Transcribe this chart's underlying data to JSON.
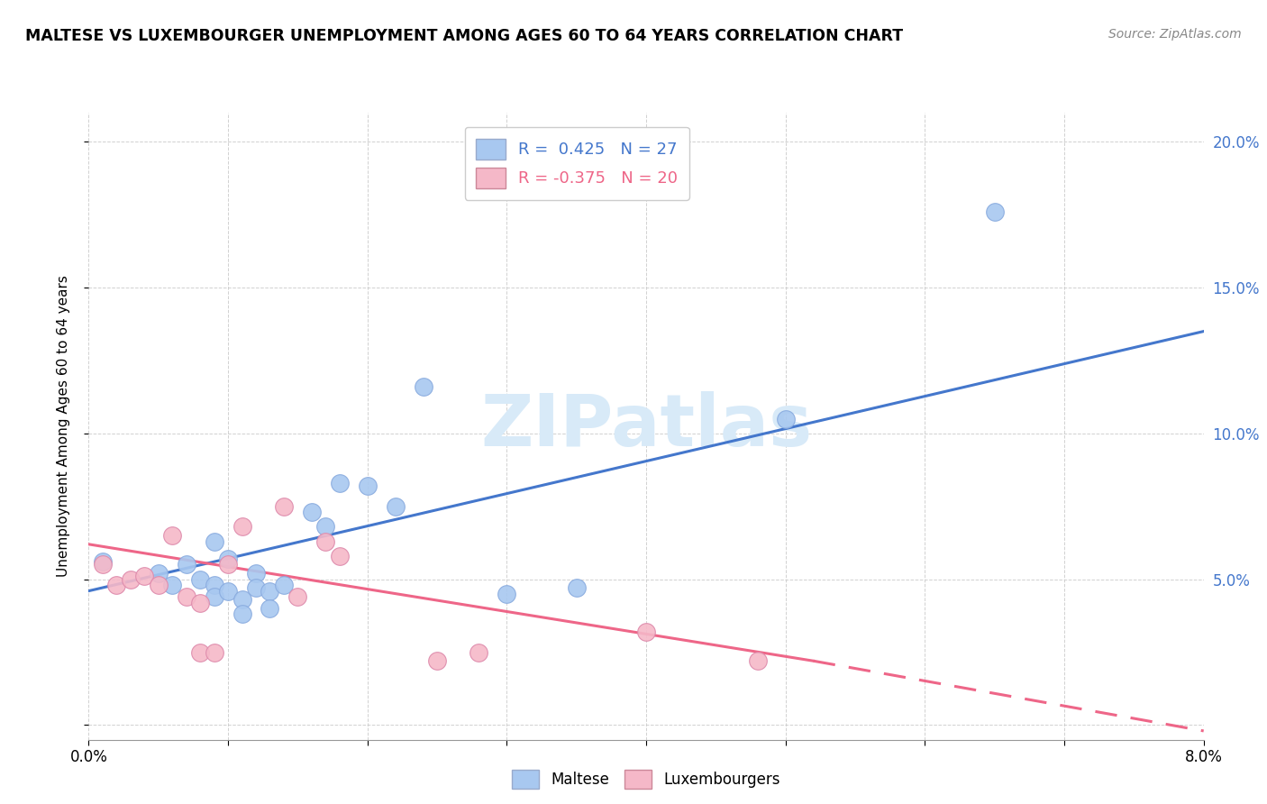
{
  "title": "MALTESE VS LUXEMBOURGER UNEMPLOYMENT AMONG AGES 60 TO 64 YEARS CORRELATION CHART",
  "source": "Source: ZipAtlas.com",
  "ylabel": "Unemployment Among Ages 60 to 64 years",
  "xlim": [
    0.0,
    0.08
  ],
  "ylim": [
    -0.005,
    0.21
  ],
  "x_ticks": [
    0.0,
    0.01,
    0.02,
    0.03,
    0.04,
    0.05,
    0.06,
    0.07,
    0.08
  ],
  "x_tick_labels": [
    "0.0%",
    "",
    "",
    "",
    "",
    "",
    "",
    "",
    "8.0%"
  ],
  "y_ticks": [
    0.0,
    0.05,
    0.1,
    0.15,
    0.2
  ],
  "y_tick_labels": [
    "",
    "5.0%",
    "10.0%",
    "15.0%",
    "20.0%"
  ],
  "legend_r_maltese": "R =  0.425",
  "legend_n_maltese": "N = 27",
  "legend_r_lux": "R = -0.375",
  "legend_n_lux": "N = 20",
  "maltese_color": "#A8C8F0",
  "lux_color": "#F5B8C8",
  "trend_maltese_color": "#4477CC",
  "trend_lux_color": "#EE6688",
  "watermark_color": "#D8EAF8",
  "maltese_x": [
    0.001,
    0.005,
    0.006,
    0.007,
    0.008,
    0.009,
    0.009,
    0.009,
    0.01,
    0.01,
    0.011,
    0.011,
    0.012,
    0.012,
    0.013,
    0.013,
    0.014,
    0.016,
    0.017,
    0.018,
    0.02,
    0.022,
    0.024,
    0.03,
    0.035,
    0.05,
    0.065
  ],
  "maltese_y": [
    0.056,
    0.052,
    0.048,
    0.055,
    0.05,
    0.048,
    0.063,
    0.044,
    0.057,
    0.046,
    0.043,
    0.038,
    0.052,
    0.047,
    0.046,
    0.04,
    0.048,
    0.073,
    0.068,
    0.083,
    0.082,
    0.075,
    0.116,
    0.045,
    0.047,
    0.105,
    0.176
  ],
  "lux_x": [
    0.001,
    0.002,
    0.003,
    0.004,
    0.005,
    0.006,
    0.007,
    0.008,
    0.008,
    0.009,
    0.01,
    0.011,
    0.014,
    0.015,
    0.017,
    0.018,
    0.025,
    0.028,
    0.04,
    0.048
  ],
  "lux_y": [
    0.055,
    0.048,
    0.05,
    0.051,
    0.048,
    0.065,
    0.044,
    0.042,
    0.025,
    0.025,
    0.055,
    0.068,
    0.075,
    0.044,
    0.063,
    0.058,
    0.022,
    0.025,
    0.032,
    0.022
  ],
  "trend_maltese_x0": 0.0,
  "trend_maltese_x1": 0.08,
  "trend_maltese_y0": 0.046,
  "trend_maltese_y1": 0.135,
  "trend_lux_x0": 0.0,
  "trend_lux_x1": 0.052,
  "trend_lux_dash_x0": 0.052,
  "trend_lux_dash_x1": 0.08,
  "trend_lux_y0": 0.062,
  "trend_lux_y1": 0.022,
  "trend_lux_dash_y1": -0.002
}
